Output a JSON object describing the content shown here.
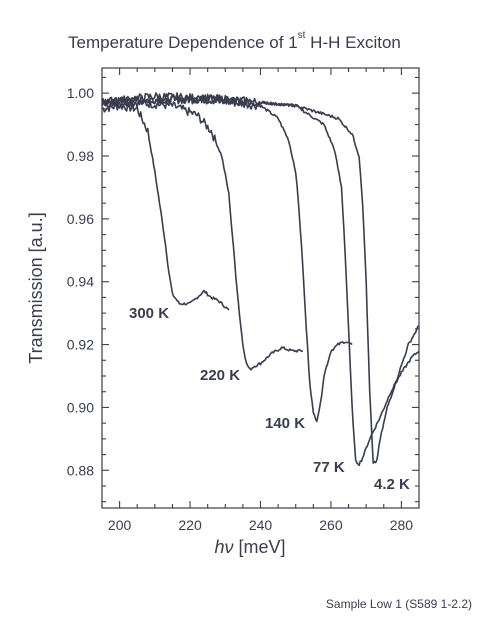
{
  "chart_data": {
    "type": "line",
    "title_main": "Temperature Dependence of 1",
    "title_sup": "st",
    "title_rest": " H-H Exciton",
    "xlabel_italic": "hν",
    "xlabel_unit": " [meV]",
    "ylabel": "Transmission [a.u.]",
    "xlim": [
      195,
      285
    ],
    "ylim": [
      0.868,
      1.008
    ],
    "xticks": [
      200,
      220,
      240,
      260,
      280
    ],
    "yticks": [
      0.88,
      0.9,
      0.92,
      0.94,
      0.96,
      0.98,
      1.0
    ],
    "ytick_labels": [
      "0.88",
      "0.90",
      "0.92",
      "0.94",
      "0.96",
      "0.98",
      "1.00"
    ],
    "grid": false,
    "series": [
      {
        "name": "300 K",
        "x": [
          195,
          200,
          205,
          208,
          210,
          212,
          213,
          214,
          215,
          217,
          220,
          222,
          224,
          226,
          228,
          230,
          231
        ],
        "y": [
          0.995,
          0.996,
          0.995,
          0.988,
          0.975,
          0.96,
          0.952,
          0.943,
          0.936,
          0.933,
          0.933,
          0.935,
          0.937,
          0.935,
          0.934,
          0.932,
          0.931
        ]
      },
      {
        "name": "220 K",
        "x": [
          195,
          205,
          215,
          222,
          226,
          229,
          231,
          232,
          233,
          234,
          235,
          236,
          237,
          238,
          240,
          243,
          246,
          249,
          252
        ],
        "y": [
          0.997,
          0.997,
          0.996,
          0.993,
          0.988,
          0.98,
          0.968,
          0.955,
          0.942,
          0.93,
          0.92,
          0.914,
          0.912,
          0.913,
          0.914,
          0.917,
          0.919,
          0.918,
          0.918
        ]
      },
      {
        "name": "140 K",
        "x": [
          195,
          210,
          225,
          240,
          245,
          248,
          250,
          251,
          252,
          253,
          254,
          255,
          256,
          257,
          258,
          260,
          262,
          264,
          266
        ],
        "y": [
          0.997,
          0.998,
          0.998,
          0.996,
          0.992,
          0.985,
          0.975,
          0.962,
          0.945,
          0.925,
          0.908,
          0.898,
          0.896,
          0.901,
          0.91,
          0.918,
          0.92,
          0.921,
          0.92
        ]
      },
      {
        "name": "77 K",
        "x": [
          195,
          210,
          230,
          250,
          258,
          261,
          263,
          264,
          265,
          266,
          267,
          268,
          269,
          271,
          274,
          277,
          280,
          283,
          285
        ],
        "y": [
          0.997,
          0.998,
          0.998,
          0.996,
          0.99,
          0.982,
          0.97,
          0.95,
          0.925,
          0.9,
          0.883,
          0.882,
          0.884,
          0.89,
          0.897,
          0.905,
          0.911,
          0.916,
          0.918
        ]
      },
      {
        "name": "4.2 K",
        "x": [
          195,
          210,
          230,
          250,
          262,
          266,
          268,
          269,
          270,
          271,
          272,
          273,
          274,
          276,
          279,
          282,
          285
        ],
        "y": [
          0.997,
          0.999,
          0.998,
          0.996,
          0.992,
          0.987,
          0.98,
          0.965,
          0.94,
          0.905,
          0.882,
          0.883,
          0.89,
          0.9,
          0.91,
          0.92,
          0.926
        ]
      }
    ],
    "annotations": [
      {
        "text": "300 K",
        "series": "300 K"
      },
      {
        "text": "220 K",
        "series": "220 K"
      },
      {
        "text": "140 K",
        "series": "140 K"
      },
      {
        "text": "77 K",
        "series": "77 K"
      },
      {
        "text": "4.2 K",
        "series": "4.2 K"
      }
    ]
  },
  "footnote": "Sample Low 1 (S589 1-2.2)"
}
